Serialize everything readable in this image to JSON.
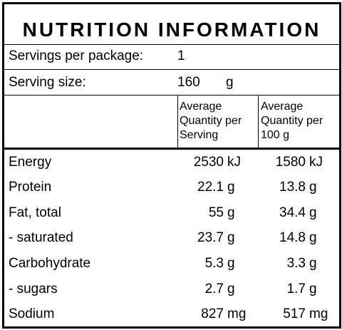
{
  "title": "NUTRITION INFORMATION",
  "servings_per_package": {
    "label": "Servings per package:",
    "value": "1"
  },
  "serving_size": {
    "label": "Serving size:",
    "value": "160",
    "unit": "g"
  },
  "column_headers": {
    "per_serving": [
      "Average",
      "Quantity per",
      "Serving"
    ],
    "per_100g": [
      "Average",
      "Quantity per",
      "100 g"
    ]
  },
  "rows": [
    {
      "name": "Energy",
      "serving": "2530",
      "serving_unit": "kJ",
      "per100": "1580",
      "per100_unit": "kJ"
    },
    {
      "name": "Protein",
      "serving": "22.1",
      "serving_unit": "g",
      "per100": "13.8",
      "per100_unit": "g"
    },
    {
      "name": "Fat, total",
      "serving": "55",
      "serving_unit": "g",
      "per100": "34.4",
      "per100_unit": "g"
    },
    {
      "name": "- saturated",
      "serving": "23.7",
      "serving_unit": "g",
      "per100": "14.8",
      "per100_unit": "g"
    },
    {
      "name": "Carbohydrate",
      "serving": "5.3",
      "serving_unit": "g",
      "per100": "3.3",
      "per100_unit": "g"
    },
    {
      "name": "- sugars",
      "serving": "2.7",
      "serving_unit": "g",
      "per100": "1.7",
      "per100_unit": "g"
    },
    {
      "name": "Sodium",
      "serving": "827",
      "serving_unit": "mg",
      "per100": "517",
      "per100_unit": "mg"
    }
  ]
}
